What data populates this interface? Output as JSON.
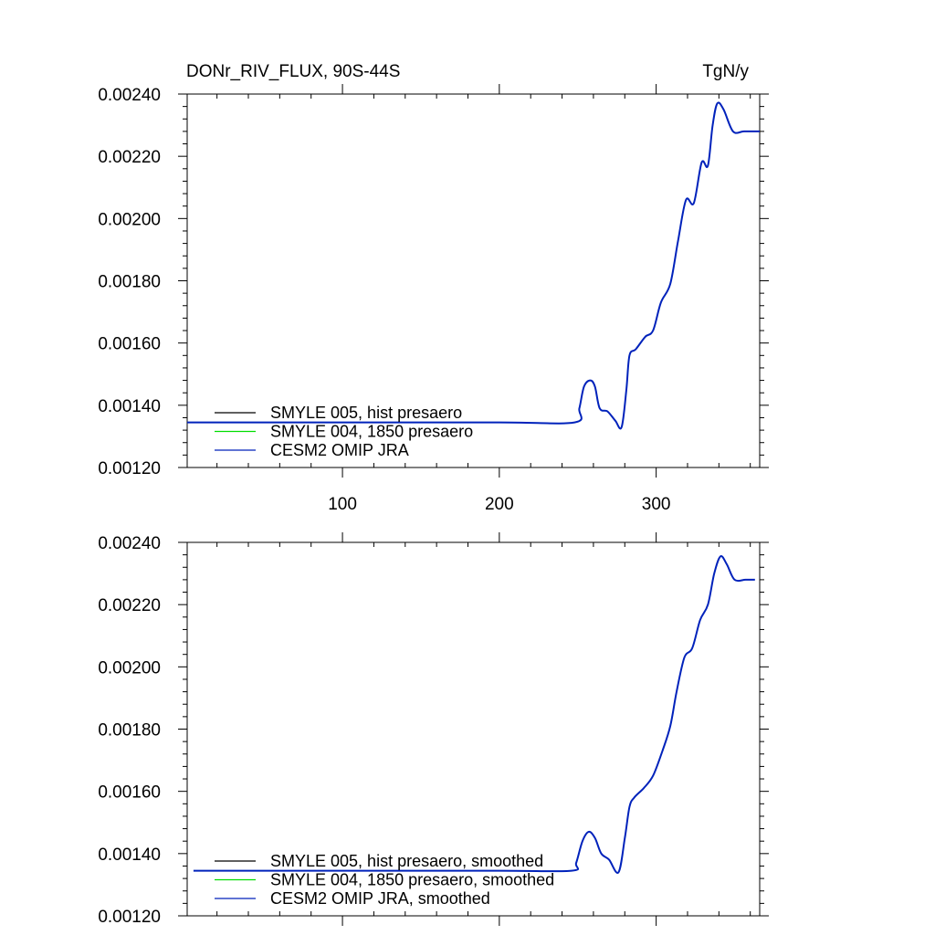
{
  "chart_data": [
    {
      "type": "line",
      "title": "DONr_RIV_FLUX, 90S-44S",
      "units": "TgN/y",
      "xlabel": "",
      "ylabel": "",
      "xlim": [
        1,
        366
      ],
      "ylim": [
        0.0012,
        0.0024
      ],
      "xticks": [
        100,
        200,
        300
      ],
      "xtick_labels": [
        "100",
        "200",
        "300"
      ],
      "yticks": [
        0.0012,
        0.0014,
        0.0016,
        0.0018,
        0.002,
        0.0022,
        0.0024
      ],
      "ytick_labels": [
        "0.00120",
        "0.00140",
        "0.00160",
        "0.00180",
        "0.00200",
        "0.00220",
        "0.00240"
      ],
      "legend_position": "bottom-left",
      "grid": false,
      "series": [
        {
          "name": "SMYLE 005, hist presaero",
          "color": "#000000",
          "points": []
        },
        {
          "name": "SMYLE 004, 1850 presaero",
          "color": "#00dd00",
          "points": []
        },
        {
          "name": "CESM2 OMIP JRA",
          "color": "#0022bb",
          "points": [
            [
              1,
              0.001345
            ],
            [
              100,
              0.001345
            ],
            [
              200,
              0.001345
            ],
            [
              248,
              0.001345
            ],
            [
              251,
              0.00139
            ],
            [
              254,
              0.00146
            ],
            [
              258,
              0.00148
            ],
            [
              261,
              0.00146
            ],
            [
              264,
              0.00139
            ],
            [
              269,
              0.00138
            ],
            [
              274,
              0.00135
            ],
            [
              278,
              0.00133
            ],
            [
              281,
              0.00145
            ],
            [
              283,
              0.00156
            ],
            [
              287,
              0.00158
            ],
            [
              293,
              0.00162
            ],
            [
              298,
              0.00164
            ],
            [
              303,
              0.00173
            ],
            [
              309,
              0.00179
            ],
            [
              314,
              0.00193
            ],
            [
              319,
              0.00206
            ],
            [
              324,
              0.00205
            ],
            [
              329,
              0.00218
            ],
            [
              333,
              0.00217
            ],
            [
              336,
              0.0023
            ],
            [
              339,
              0.00237
            ],
            [
              343,
              0.00235
            ],
            [
              349,
              0.00228
            ],
            [
              356,
              0.00228
            ],
            [
              366,
              0.00228
            ]
          ]
        }
      ]
    },
    {
      "type": "line",
      "title": "",
      "xlabel": "",
      "ylabel": "",
      "xlim": [
        1,
        366
      ],
      "ylim": [
        0.0012,
        0.0024
      ],
      "xticks": [
        100,
        200,
        300
      ],
      "yticks": [
        0.0012,
        0.0014,
        0.0016,
        0.0018,
        0.002,
        0.0022,
        0.0024
      ],
      "ytick_labels": [
        "0.00120",
        "0.00140",
        "0.00160",
        "0.00180",
        "0.00200",
        "0.00220",
        "0.00240"
      ],
      "legend_position": "bottom-left",
      "grid": false,
      "series": [
        {
          "name": "SMYLE 005, hist presaero, smoothed",
          "color": "#000000",
          "points": []
        },
        {
          "name": "SMYLE 004, 1850 presaero, smoothed",
          "color": "#00dd00",
          "points": []
        },
        {
          "name": "CESM2 OMIP JRA, smoothed",
          "color": "#0022bb",
          "points": [
            [
              5,
              0.001345
            ],
            [
              100,
              0.001345
            ],
            [
              200,
              0.001345
            ],
            [
              246,
              0.001345
            ],
            [
              249,
              0.00137
            ],
            [
              253,
              0.00144
            ],
            [
              257,
              0.00147
            ],
            [
              261,
              0.00145
            ],
            [
              265,
              0.0014
            ],
            [
              270,
              0.00138
            ],
            [
              276,
              0.00134
            ],
            [
              280,
              0.00145
            ],
            [
              283,
              0.00155
            ],
            [
              286,
              0.00158
            ],
            [
              292,
              0.00161
            ],
            [
              298,
              0.00165
            ],
            [
              304,
              0.00173
            ],
            [
              309,
              0.00181
            ],
            [
              313,
              0.00192
            ],
            [
              318,
              0.00203
            ],
            [
              323,
              0.00206
            ],
            [
              328,
              0.00215
            ],
            [
              333,
              0.0022
            ],
            [
              337,
              0.0023
            ],
            [
              341,
              0.002355
            ],
            [
              345,
              0.00233
            ],
            [
              350,
              0.00228
            ],
            [
              357,
              0.00228
            ],
            [
              363,
              0.00228
            ]
          ]
        }
      ]
    }
  ]
}
